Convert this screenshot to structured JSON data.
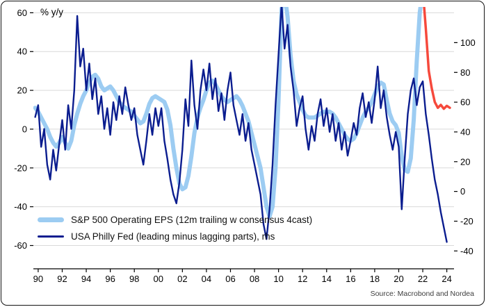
{
  "header": {
    "unit_label": "% y/y"
  },
  "footer": {
    "source": "Source: Macrobond and Nordea"
  },
  "legend": {
    "items": [
      {
        "label": "S&P 500 Operating EPS (12m trailing w consensus 4cast)",
        "color": "#9cccf2"
      },
      {
        "label": "USA Philly Fed (leading minus lagging parts), rhs",
        "color": "#0b1d8f"
      }
    ]
  },
  "chart_data": {
    "type": "line",
    "title": "",
    "grid": "horizontal",
    "legend_position": "inside-bottom-left",
    "x_axis": {
      "min": 1989.6,
      "max": 2024.6,
      "ticks": [
        1990,
        1992,
        1994,
        1996,
        1998,
        2000,
        2002,
        2004,
        2006,
        2008,
        2010,
        2012,
        2014,
        2016,
        2018,
        2020,
        2022,
        2024
      ],
      "tick_labels": [
        "90",
        "92",
        "94",
        "96",
        "98",
        "00",
        "02",
        "04",
        "06",
        "08",
        "10",
        "12",
        "14",
        "16",
        "18",
        "20",
        "22",
        "24"
      ]
    },
    "left_axis": {
      "label": "% y/y",
      "min": -72,
      "max": 63,
      "ticks": [
        -60,
        -40,
        -20,
        0,
        20,
        40,
        60
      ]
    },
    "right_axis": {
      "min": -52,
      "max": 124,
      "ticks": [
        -40,
        -20,
        0,
        20,
        40,
        60,
        80,
        100
      ]
    },
    "series": [
      {
        "name": "S&P 500 Operating EPS (12m trailing w consensus 4cast)",
        "axis": "left",
        "color": "#9cccf2",
        "width": 6,
        "x_start": 1989.75,
        "x_step": 0.25,
        "values": [
          11,
          9,
          6,
          3,
          0,
          -4,
          -7,
          -9,
          -7,
          -4,
          -7,
          -10,
          -6,
          2,
          8,
          13,
          17,
          20,
          24,
          27,
          28,
          26,
          22,
          20,
          21,
          22,
          20,
          17,
          14,
          12,
          11,
          10,
          9,
          7,
          5,
          3,
          4,
          8,
          13,
          16,
          17,
          16,
          15,
          14,
          10,
          2,
          -10,
          -20,
          -28,
          -31,
          -30,
          -24,
          -14,
          -2,
          6,
          11,
          15,
          20,
          24,
          25,
          23,
          20,
          17,
          15,
          14,
          15,
          16,
          17,
          15,
          12,
          8,
          4,
          -2,
          -8,
          -14,
          -20,
          -30,
          -40,
          -45,
          -40,
          -20,
          15,
          62,
          70,
          58,
          38,
          25,
          18,
          14,
          10,
          7,
          6,
          6,
          6,
          7,
          8,
          9,
          9,
          9,
          8,
          6,
          3,
          0,
          -3,
          -5,
          -6,
          -5,
          -2,
          2,
          6,
          9,
          11,
          14,
          18,
          22,
          24,
          23,
          15,
          8,
          4,
          2,
          -2,
          -14,
          -21,
          -22,
          -15,
          5,
          35,
          60,
          72
        ]
      },
      {
        "name": "S&P 500 Operating EPS consensus forecast",
        "axis": "left",
        "color": "#f6493c",
        "width": 3.5,
        "x_start": 2022.0,
        "x_step": 0.25,
        "values": [
          72,
          52,
          30,
          21,
          14,
          11,
          12.5,
          10.5,
          12,
          11
        ]
      },
      {
        "name": "USA Philly Fed (leading minus lagging parts), rhs",
        "axis": "right",
        "color": "#0b1d8f",
        "width": 2.4,
        "x_start": 1989.75,
        "x_step": 0.25,
        "values": [
          50,
          58,
          30,
          42,
          18,
          8,
          28,
          14,
          32,
          48,
          28,
          58,
          42,
          68,
          118,
          84,
          96,
          68,
          86,
          62,
          76,
          52,
          64,
          42,
          56,
          38,
          60,
          48,
          64,
          52,
          70,
          58,
          48,
          56,
          38,
          28,
          18,
          34,
          52,
          38,
          56,
          44,
          56,
          34,
          22,
          8,
          -2,
          -8,
          6,
          28,
          62,
          44,
          88,
          58,
          42,
          68,
          82,
          68,
          86,
          62,
          76,
          54,
          66,
          48,
          68,
          80,
          58,
          48,
          38,
          52,
          34,
          46,
          28,
          18,
          8,
          -2,
          -22,
          -32,
          -12,
          18,
          58,
          92,
          126,
          96,
          112,
          84,
          68,
          44,
          56,
          64,
          42,
          28,
          44,
          34,
          52,
          62,
          44,
          56,
          40,
          52,
          34,
          46,
          28,
          40,
          24,
          34,
          46,
          38,
          56,
          66,
          50,
          60,
          46,
          62,
          84,
          56,
          68,
          50,
          38,
          28,
          40,
          30,
          -12,
          22,
          52,
          68,
          76,
          58,
          70,
          74,
          52,
          38,
          22,
          8,
          -2,
          -14,
          -24,
          -34
        ]
      }
    ]
  }
}
